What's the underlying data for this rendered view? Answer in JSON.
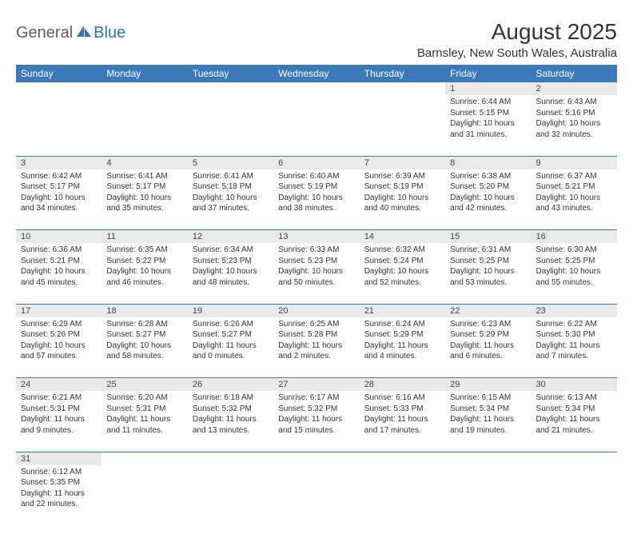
{
  "brand": {
    "part1": "General",
    "part2": "Blue"
  },
  "title": "August 2025",
  "location": "Barnsley, New South Wales, Australia",
  "colors": {
    "header_bg": "#3a7ab8",
    "header_fg": "#ffffff",
    "daynum_bg": "#e9e9e9",
    "row_border": "#3a7ab8",
    "logo_gray": "#5f5f5f",
    "logo_blue": "#2f74b5"
  },
  "dayHeaders": [
    "Sunday",
    "Monday",
    "Tuesday",
    "Wednesday",
    "Thursday",
    "Friday",
    "Saturday"
  ],
  "weeks": [
    [
      null,
      null,
      null,
      null,
      null,
      {
        "n": "1",
        "sr": "6:44 AM",
        "ss": "5:15 PM",
        "dl": "10 hours and 31 minutes."
      },
      {
        "n": "2",
        "sr": "6:43 AM",
        "ss": "5:16 PM",
        "dl": "10 hours and 32 minutes."
      }
    ],
    [
      {
        "n": "3",
        "sr": "6:42 AM",
        "ss": "5:17 PM",
        "dl": "10 hours and 34 minutes."
      },
      {
        "n": "4",
        "sr": "6:41 AM",
        "ss": "5:17 PM",
        "dl": "10 hours and 35 minutes."
      },
      {
        "n": "5",
        "sr": "6:41 AM",
        "ss": "5:18 PM",
        "dl": "10 hours and 37 minutes."
      },
      {
        "n": "6",
        "sr": "6:40 AM",
        "ss": "5:19 PM",
        "dl": "10 hours and 38 minutes."
      },
      {
        "n": "7",
        "sr": "6:39 AM",
        "ss": "5:19 PM",
        "dl": "10 hours and 40 minutes."
      },
      {
        "n": "8",
        "sr": "6:38 AM",
        "ss": "5:20 PM",
        "dl": "10 hours and 42 minutes."
      },
      {
        "n": "9",
        "sr": "6:37 AM",
        "ss": "5:21 PM",
        "dl": "10 hours and 43 minutes."
      }
    ],
    [
      {
        "n": "10",
        "sr": "6:36 AM",
        "ss": "5:21 PM",
        "dl": "10 hours and 45 minutes."
      },
      {
        "n": "11",
        "sr": "6:35 AM",
        "ss": "5:22 PM",
        "dl": "10 hours and 46 minutes."
      },
      {
        "n": "12",
        "sr": "6:34 AM",
        "ss": "5:23 PM",
        "dl": "10 hours and 48 minutes."
      },
      {
        "n": "13",
        "sr": "6:33 AM",
        "ss": "5:23 PM",
        "dl": "10 hours and 50 minutes."
      },
      {
        "n": "14",
        "sr": "6:32 AM",
        "ss": "5:24 PM",
        "dl": "10 hours and 52 minutes."
      },
      {
        "n": "15",
        "sr": "6:31 AM",
        "ss": "5:25 PM",
        "dl": "10 hours and 53 minutes."
      },
      {
        "n": "16",
        "sr": "6:30 AM",
        "ss": "5:25 PM",
        "dl": "10 hours and 55 minutes."
      }
    ],
    [
      {
        "n": "17",
        "sr": "6:29 AM",
        "ss": "5:26 PM",
        "dl": "10 hours and 57 minutes."
      },
      {
        "n": "18",
        "sr": "6:28 AM",
        "ss": "5:27 PM",
        "dl": "10 hours and 58 minutes."
      },
      {
        "n": "19",
        "sr": "6:26 AM",
        "ss": "5:27 PM",
        "dl": "11 hours and 0 minutes."
      },
      {
        "n": "20",
        "sr": "6:25 AM",
        "ss": "5:28 PM",
        "dl": "11 hours and 2 minutes."
      },
      {
        "n": "21",
        "sr": "6:24 AM",
        "ss": "5:29 PM",
        "dl": "11 hours and 4 minutes."
      },
      {
        "n": "22",
        "sr": "6:23 AM",
        "ss": "5:29 PM",
        "dl": "11 hours and 6 minutes."
      },
      {
        "n": "23",
        "sr": "6:22 AM",
        "ss": "5:30 PM",
        "dl": "11 hours and 7 minutes."
      }
    ],
    [
      {
        "n": "24",
        "sr": "6:21 AM",
        "ss": "5:31 PM",
        "dl": "11 hours and 9 minutes."
      },
      {
        "n": "25",
        "sr": "6:20 AM",
        "ss": "5:31 PM",
        "dl": "11 hours and 11 minutes."
      },
      {
        "n": "26",
        "sr": "6:18 AM",
        "ss": "5:32 PM",
        "dl": "11 hours and 13 minutes."
      },
      {
        "n": "27",
        "sr": "6:17 AM",
        "ss": "5:32 PM",
        "dl": "11 hours and 15 minutes."
      },
      {
        "n": "28",
        "sr": "6:16 AM",
        "ss": "5:33 PM",
        "dl": "11 hours and 17 minutes."
      },
      {
        "n": "29",
        "sr": "6:15 AM",
        "ss": "5:34 PM",
        "dl": "11 hours and 19 minutes."
      },
      {
        "n": "30",
        "sr": "6:13 AM",
        "ss": "5:34 PM",
        "dl": "11 hours and 21 minutes."
      }
    ],
    [
      {
        "n": "31",
        "sr": "6:12 AM",
        "ss": "5:35 PM",
        "dl": "11 hours and 22 minutes."
      },
      null,
      null,
      null,
      null,
      null,
      null
    ]
  ],
  "labels": {
    "sunrise": "Sunrise:",
    "sunset": "Sunset:",
    "daylight": "Daylight:"
  }
}
